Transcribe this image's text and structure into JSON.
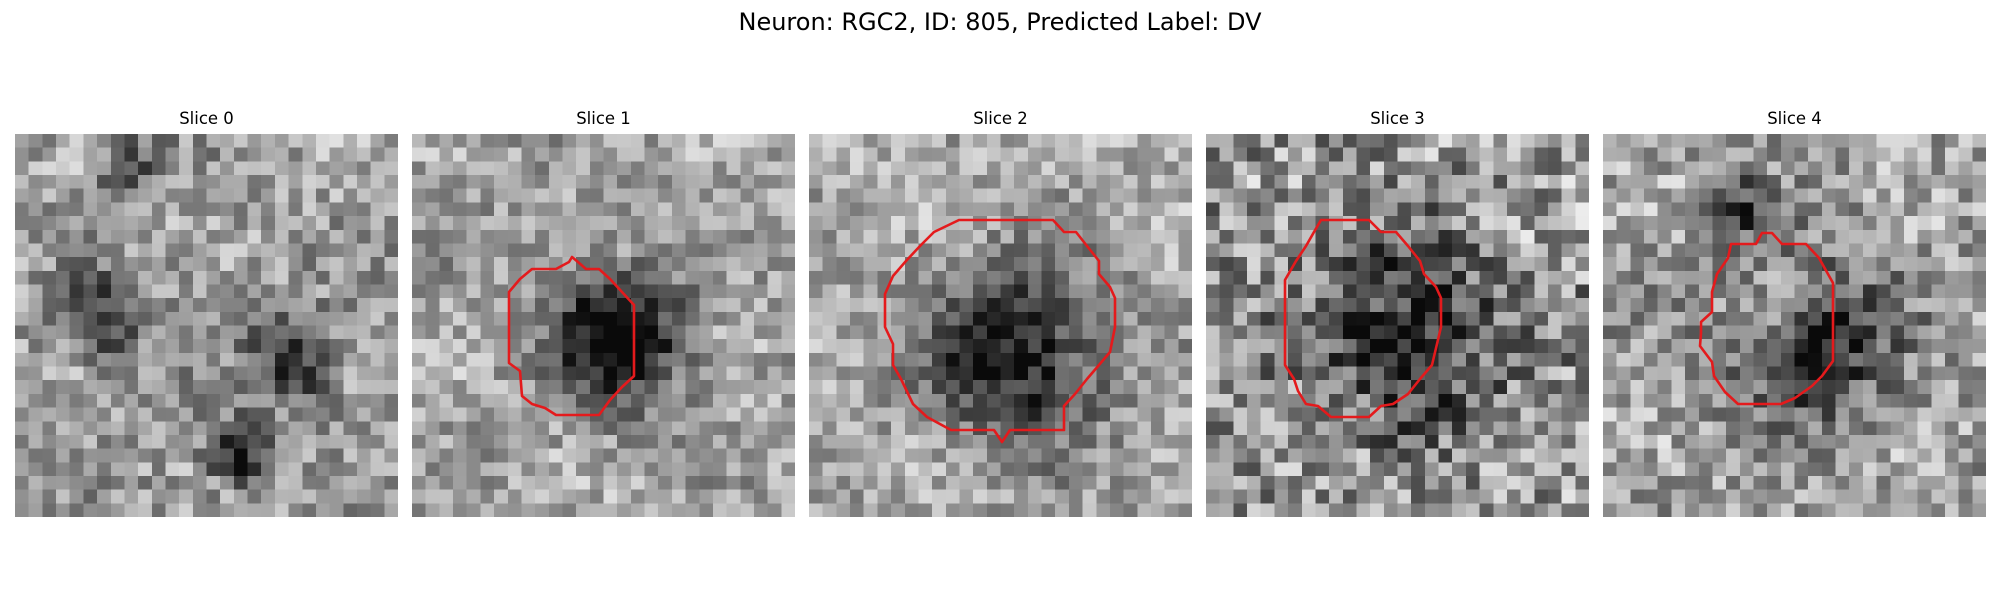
{
  "figure": {
    "title": "Neuron: RGC2, ID: 805, Predicted Label: DV"
  },
  "panels": [
    {
      "title": "Slice 0",
      "has_contour": false,
      "contour_color": "#e41a1c"
    },
    {
      "title": "Slice 1",
      "has_contour": true,
      "contour_color": "#e41a1c"
    },
    {
      "title": "Slice 2",
      "has_contour": true,
      "contour_color": "#e41a1c"
    },
    {
      "title": "Slice 3",
      "has_contour": true,
      "contour_color": "#e41a1c"
    },
    {
      "title": "Slice 4",
      "has_contour": true,
      "contour_color": "#e41a1c"
    }
  ]
}
